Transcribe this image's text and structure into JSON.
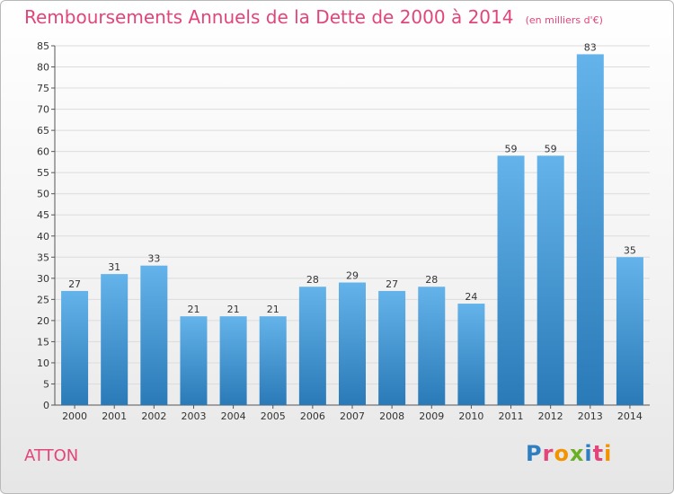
{
  "header": {
    "title": "Remboursements Annuels de la Dette de 2000 à 2014",
    "unit": "(en milliers d'€)"
  },
  "footer": {
    "commune": "ATTON",
    "logo_text": "Proxiti",
    "logo_colors": [
      "#2e7fc2",
      "#e2457a",
      "#f29400",
      "#6ab023",
      "#2e7fc2",
      "#e2457a",
      "#f29400"
    ]
  },
  "colors": {
    "bar_light": "#64b3ea",
    "bar_dark": "#2a7ab8",
    "title": "#e2457a",
    "grid": "#dcdcdc"
  },
  "chart_data": {
    "type": "bar",
    "title": "Remboursements Annuels de la Dette de 2000 à 2014",
    "xlabel": "",
    "ylabel": "",
    "categories": [
      "2000",
      "2001",
      "2002",
      "2003",
      "2004",
      "2005",
      "2006",
      "2007",
      "2008",
      "2009",
      "2010",
      "2011",
      "2012",
      "2013",
      "2014"
    ],
    "values": [
      27,
      31,
      33,
      21,
      21,
      21,
      28,
      29,
      27,
      28,
      24,
      59,
      59,
      83,
      35
    ],
    "ylim": [
      0,
      85
    ],
    "ytick_step": 5,
    "grid": true,
    "legend": "none"
  }
}
